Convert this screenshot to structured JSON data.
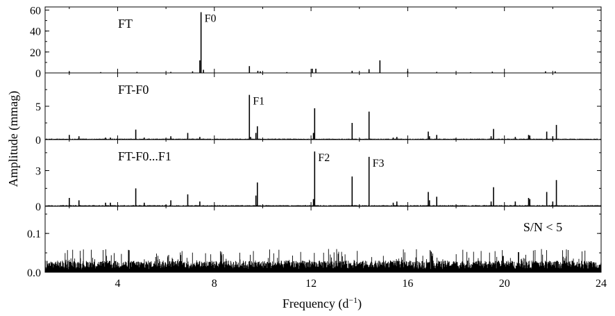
{
  "chart_data": {
    "type": "line",
    "xlabel": "Frequency (d",
    "xlabel_sup": "−1",
    "xlabel_close": ")",
    "ylabel": "Amplitude (mmag)",
    "xlim": [
      1,
      24
    ],
    "x_ticks": [
      4,
      8,
      12,
      16,
      20,
      24
    ],
    "panels": [
      {
        "label": "FT",
        "ylim": [
          0,
          63
        ],
        "y_ticks": [
          0,
          20,
          40,
          60
        ],
        "y_tick_labels": [
          "0",
          "20",
          "40",
          "60"
        ],
        "noise": 0.3,
        "peaks": [
          [
            7.45,
            58
          ],
          [
            7.4,
            12
          ],
          [
            7.55,
            3
          ],
          [
            9.45,
            6.5
          ],
          [
            9.8,
            2
          ],
          [
            12.05,
            4
          ],
          [
            12.2,
            4
          ],
          [
            13.7,
            2
          ],
          [
            14.4,
            3.5
          ],
          [
            14.85,
            12
          ],
          [
            16.0,
            2
          ],
          [
            17.2,
            1
          ],
          [
            22.1,
            1.5
          ],
          [
            2.0,
            1
          ],
          [
            4.8,
            1
          ],
          [
            6.2,
            1
          ],
          [
            7.1,
            1.5
          ],
          [
            9.9,
            1.5
          ],
          [
            19.5,
            1.2
          ],
          [
            21.7,
            1.5
          ],
          [
            3.3,
            0.8
          ],
          [
            11.0,
            0.8
          ],
          [
            18.6,
            0.7
          ]
        ],
        "annotations": [
          {
            "text": "F0",
            "x": 7.45,
            "y": 58
          }
        ]
      },
      {
        "label": "FT-F0",
        "ylim": [
          0,
          10
        ],
        "y_ticks": [
          0,
          5
        ],
        "y_tick_labels": [
          "0",
          "5"
        ],
        "noise": 0.12,
        "peaks": [
          [
            9.45,
            6.7
          ],
          [
            9.5,
            0.4
          ],
          [
            9.78,
            2.0
          ],
          [
            9.72,
            1.0
          ],
          [
            12.15,
            4.7
          ],
          [
            12.1,
            1.0
          ],
          [
            13.7,
            2.5
          ],
          [
            14.4,
            4.2
          ],
          [
            4.75,
            1.5
          ],
          [
            2.0,
            0.7
          ],
          [
            2.4,
            0.5
          ],
          [
            3.5,
            0.3
          ],
          [
            3.7,
            0.3
          ],
          [
            5.1,
            0.3
          ],
          [
            6.2,
            0.5
          ],
          [
            6.9,
            1.0
          ],
          [
            7.4,
            0.4
          ],
          [
            15.4,
            0.3
          ],
          [
            15.55,
            0.4
          ],
          [
            16.85,
            1.2
          ],
          [
            16.9,
            0.5
          ],
          [
            17.2,
            0.7
          ],
          [
            19.45,
            0.5
          ],
          [
            19.55,
            1.6
          ],
          [
            20.45,
            0.4
          ],
          [
            21.0,
            0.7
          ],
          [
            21.05,
            0.6
          ],
          [
            21.75,
            1.2
          ],
          [
            22.0,
            0.5
          ],
          [
            22.15,
            2.2
          ]
        ],
        "annotations": [
          {
            "text": "F1",
            "x": 9.45,
            "y": 6.7
          }
        ]
      },
      {
        "label": "FT-F0...F1",
        "ylim": [
          0,
          5.6
        ],
        "y_ticks": [
          0,
          3
        ],
        "y_tick_labels": [
          "0",
          "3"
        ],
        "noise": 0.08,
        "peaks": [
          [
            12.15,
            4.6
          ],
          [
            12.1,
            0.6
          ],
          [
            13.7,
            2.5
          ],
          [
            14.4,
            4.15
          ],
          [
            9.78,
            2.0
          ],
          [
            9.72,
            0.9
          ],
          [
            4.75,
            1.5
          ],
          [
            2.0,
            0.7
          ],
          [
            2.4,
            0.5
          ],
          [
            3.5,
            0.3
          ],
          [
            3.7,
            0.3
          ],
          [
            5.1,
            0.3
          ],
          [
            6.2,
            0.5
          ],
          [
            6.9,
            1.0
          ],
          [
            7.4,
            0.4
          ],
          [
            15.4,
            0.3
          ],
          [
            15.55,
            0.4
          ],
          [
            16.85,
            1.2
          ],
          [
            16.9,
            0.5
          ],
          [
            17.2,
            0.8
          ],
          [
            19.45,
            0.4
          ],
          [
            19.55,
            1.6
          ],
          [
            20.45,
            0.4
          ],
          [
            21.0,
            0.7
          ],
          [
            21.05,
            0.6
          ],
          [
            21.75,
            1.2
          ],
          [
            22.0,
            0.4
          ],
          [
            22.15,
            2.2
          ]
        ],
        "annotations": [
          {
            "text": "F2",
            "x": 12.15,
            "y": 4.6
          },
          {
            "text": "F3",
            "x": 14.4,
            "y": 4.15
          }
        ]
      },
      {
        "label": "S/N < 5",
        "ylim": [
          0,
          0.17
        ],
        "y_ticks": [
          0,
          0.1
        ],
        "y_tick_labels": [
          "0.0",
          "0.1"
        ],
        "noise": 0.025,
        "noise_spikes": 0.06,
        "peaks": [],
        "annotations": []
      }
    ]
  }
}
